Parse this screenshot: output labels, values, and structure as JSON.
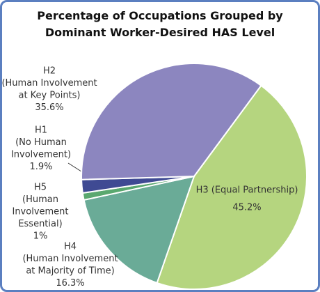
{
  "chart_data": {
    "type": "pie",
    "title": "Percentage of Occupations Grouped by Dominant Worker-Desired HAS Level",
    "categories": [
      [
        "H3 (Equal Partnership)"
      ],
      [
        "H4",
        "(Human Involvement",
        "at Majority of Time)"
      ],
      [
        "H5",
        "(Human",
        "Involvement",
        "Essential)"
      ],
      [
        "H1",
        "(No Human",
        "Involvement)"
      ],
      [
        "H2",
        "(Human Involvement",
        "at Key Points)"
      ]
    ],
    "values": [
      45.2,
      16.3,
      1,
      1.9,
      35.6
    ],
    "value_labels": [
      "45.2%",
      "16.3%",
      "1%",
      "1.9%",
      "35.6%"
    ],
    "colors": [
      "#b5d57f",
      "#6aab97",
      "#5aa86f",
      "#3f4a93",
      "#8c86bf"
    ]
  }
}
